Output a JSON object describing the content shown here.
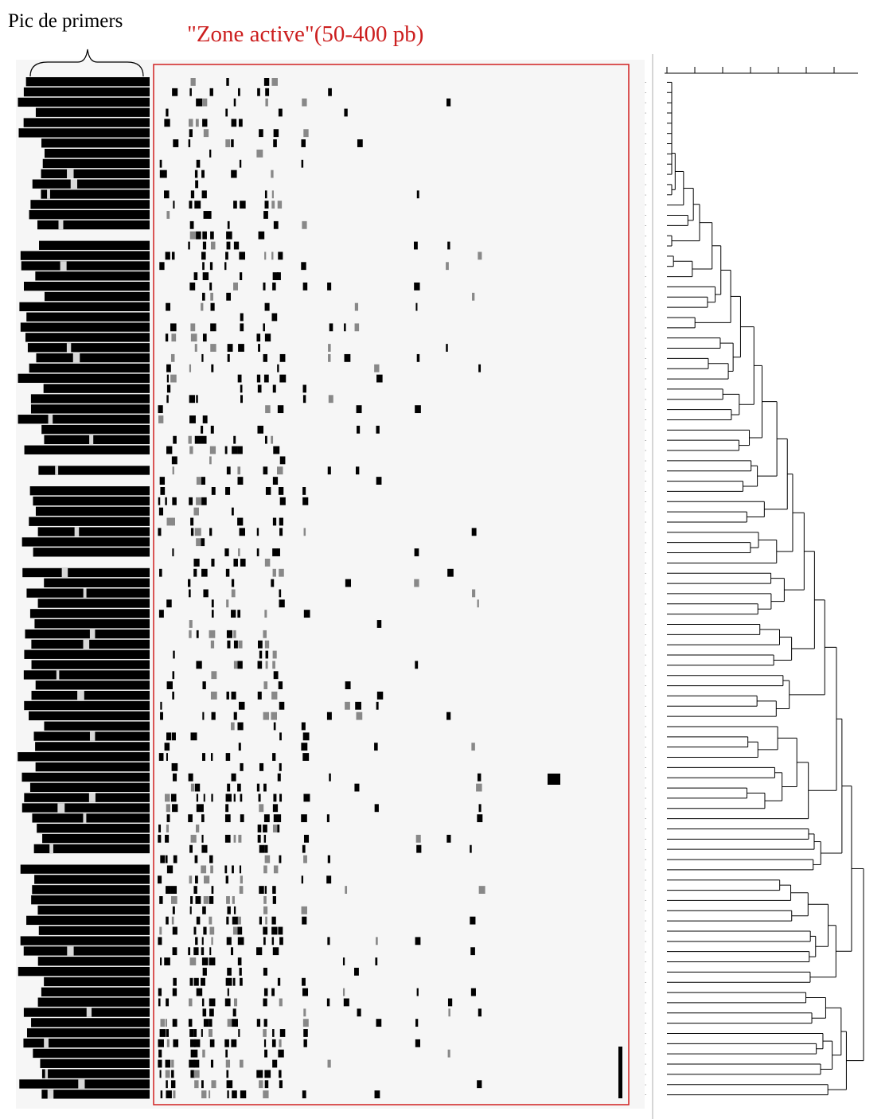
{
  "labels": {
    "primer_peak": "Pic de primers",
    "active_zone": "\"Zone active\"(50-400 pb)"
  }
}
